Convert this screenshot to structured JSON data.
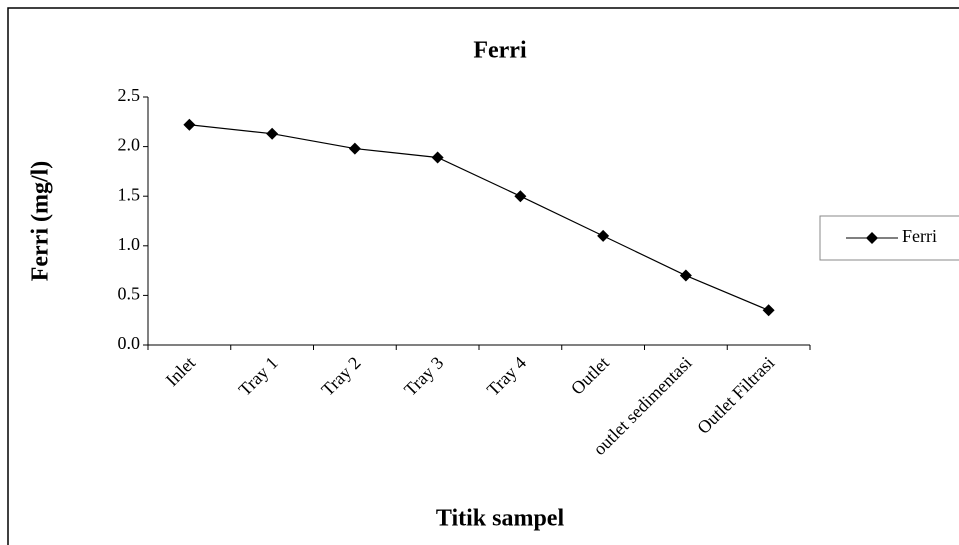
{
  "chart_data": {
    "type": "line",
    "title": "Ferri",
    "x_label": "Titik sampel",
    "y_label": "Ferri (mg/l)",
    "categories": [
      "Inlet",
      "Tray 1",
      "Tray 2",
      "Tray 3",
      "Tray 4",
      "Outlet",
      "outlet sedimentasi",
      "Outlet Filtrasi"
    ],
    "series": [
      {
        "name": "Ferri",
        "color": "#000000",
        "values": [
          2.22,
          2.13,
          1.98,
          1.89,
          1.5,
          1.1,
          0.7,
          0.35
        ]
      }
    ],
    "ylim": [
      0,
      2.5
    ],
    "yticks": [
      {
        "value": 0,
        "label": "0.0"
      },
      0.5,
      {
        "value": 1,
        "label": "1.0"
      },
      1.5,
      {
        "value": 2,
        "label": "2.0"
      },
      2.5
    ],
    "grid": false,
    "legend": "right"
  }
}
